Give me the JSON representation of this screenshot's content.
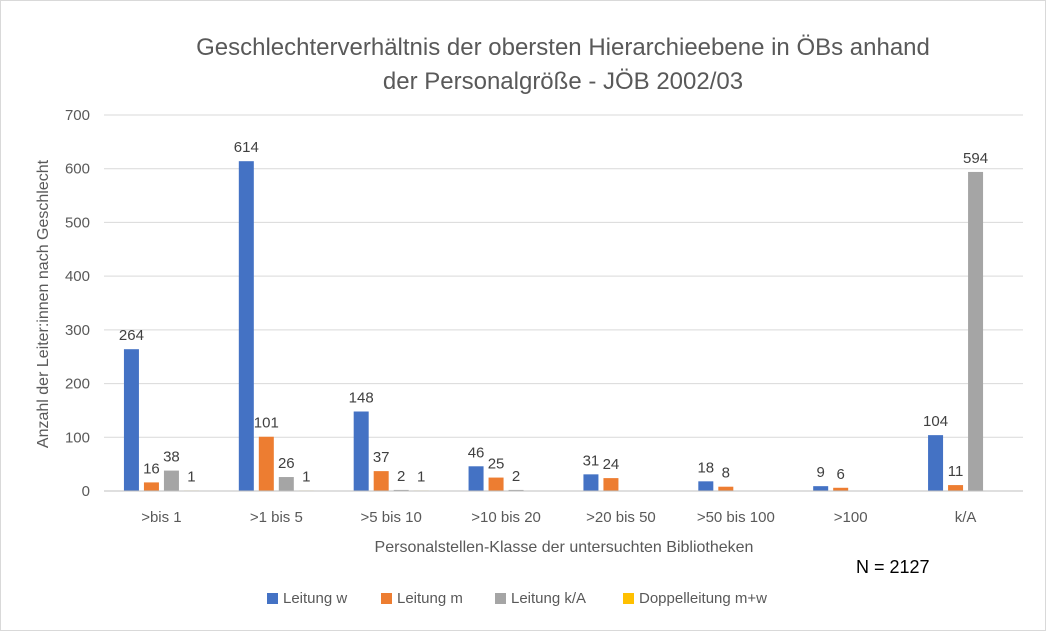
{
  "chart_data": {
    "type": "bar",
    "title_lines": [
      "Geschlechterverhältnis der obersten Hierarchieebene in ÖBs anhand",
      "der Personalgröße - JÖB 2002/03"
    ],
    "xlabel": "Personalstellen-Klasse der untersuchten Bibliotheken",
    "ylabel": "Anzahl der Leiter:innen  nach Geschlecht",
    "ylim": [
      0,
      700
    ],
    "yticks": [
      0,
      100,
      200,
      300,
      400,
      500,
      600,
      700
    ],
    "grid": true,
    "legend_position": "bottom",
    "categories": [
      ">bis 1",
      ">1 bis 5",
      ">5 bis 10",
      ">10 bis 20",
      ">20 bis 50",
      ">50 bis 100",
      ">100",
      "k/A"
    ],
    "series": [
      {
        "name": "Leitung w",
        "color": "#4472c4",
        "values": [
          264,
          614,
          148,
          46,
          31,
          18,
          9,
          104
        ],
        "labels": [
          "264",
          "614",
          "148",
          "46",
          "31",
          "18",
          "9",
          "104"
        ]
      },
      {
        "name": "Leitung m",
        "color": "#ed7d31",
        "values": [
          16,
          101,
          37,
          25,
          24,
          8,
          6,
          11
        ],
        "labels": [
          "16",
          "101",
          "37",
          "25",
          "24",
          "8",
          "6",
          "11"
        ]
      },
      {
        "name": "Leitung k/A",
        "color": "#a5a5a5",
        "values": [
          38,
          26,
          2,
          2,
          0,
          0,
          0,
          594
        ],
        "labels": [
          "38",
          "26",
          "2",
          "2",
          null,
          null,
          null,
          "594"
        ]
      },
      {
        "name": "Doppelleitung m+w",
        "color": "#ffc000",
        "values": [
          1,
          1,
          1,
          0,
          0,
          0,
          0,
          0
        ],
        "labels": [
          "1",
          "1",
          "1",
          null,
          null,
          null,
          null,
          null
        ]
      }
    ],
    "annotation": "N = 2127"
  }
}
